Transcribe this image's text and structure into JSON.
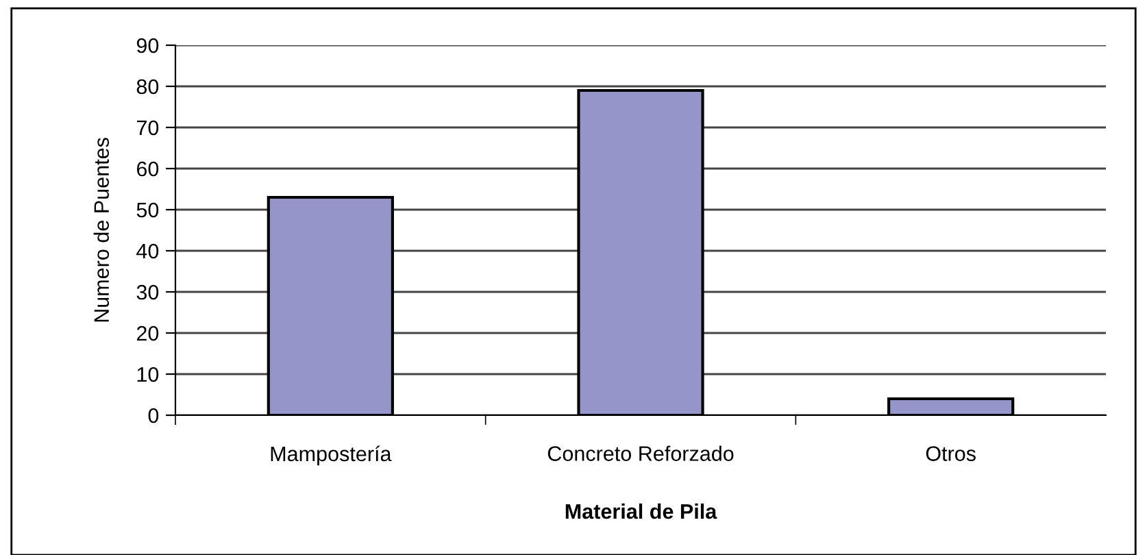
{
  "chart_data": {
    "type": "bar",
    "xlabel": "Material de Pila",
    "ylabel": "Numero de Puentes",
    "categories": [
      "Mampostería",
      "Concreto Reforzado",
      "Otros"
    ],
    "values": [
      53,
      79,
      4
    ],
    "color": "#9595c9",
    "ylim": [
      0,
      90
    ],
    "yticks": [
      0,
      10,
      20,
      30,
      40,
      50,
      60,
      70,
      80,
      90
    ],
    "grid": "y"
  }
}
